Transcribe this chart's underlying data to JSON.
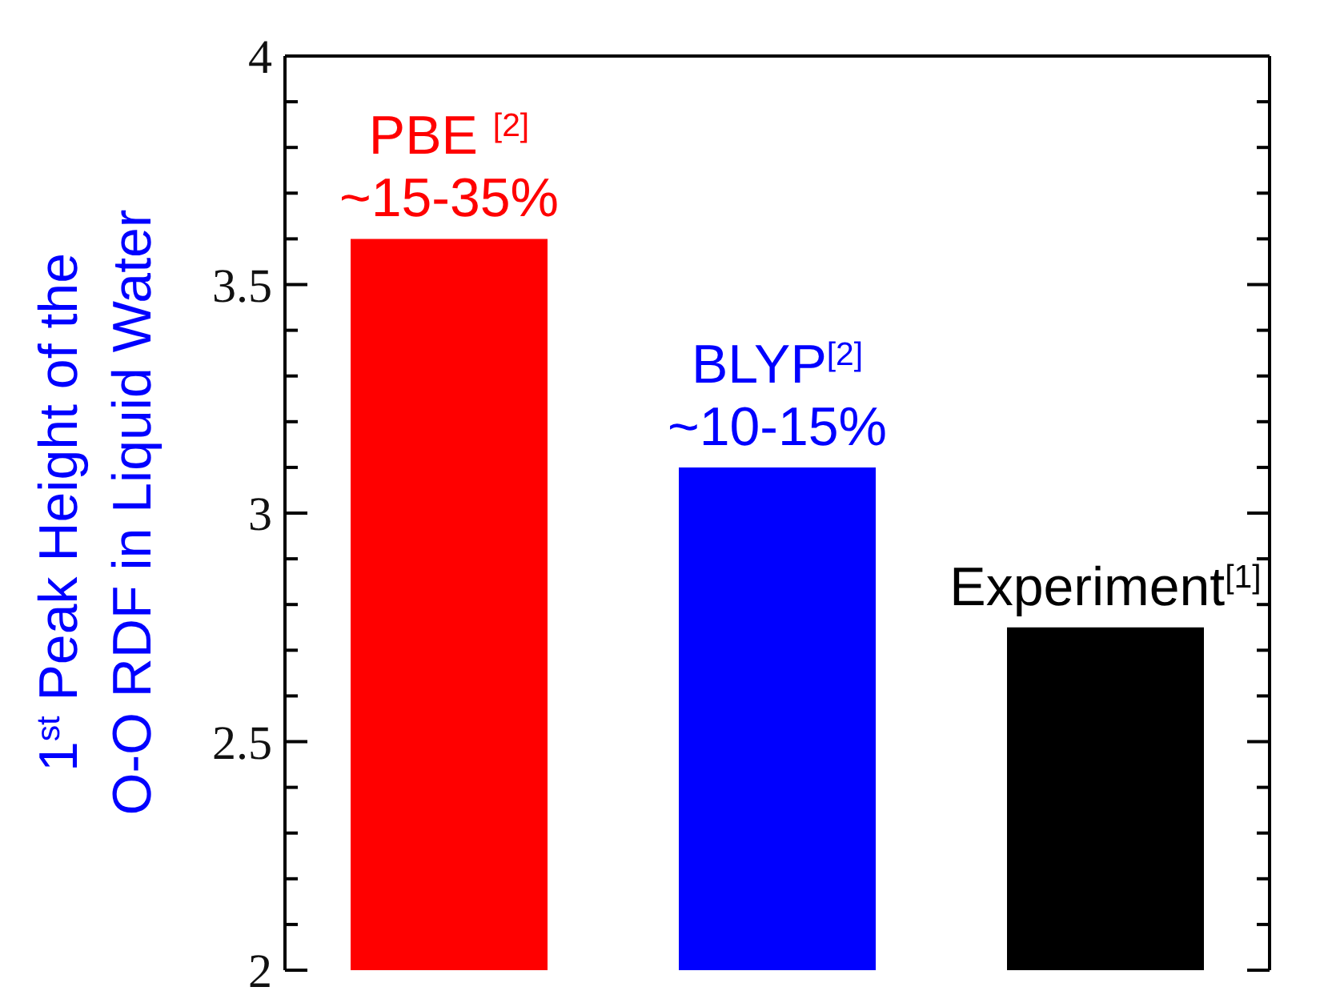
{
  "chart_data": {
    "type": "bar",
    "ylabel": "1$^{st}$ Peak Height of the\nO-O RDF in Liquid Water",
    "categories": [
      null,
      null,
      null
    ],
    "values": [
      3.6,
      3.1,
      2.75
    ],
    "colors": [
      "#ff0000",
      "#0000ff",
      "#000000"
    ],
    "annotations": [
      "PBE $^{[2]}$\n~15-35%",
      "BLYP$^{[2]}$\n~10-15%",
      "Experiment$^{[1]}$"
    ],
    "ylim": [
      2,
      4
    ],
    "yticks": [
      2,
      {
        "value": 2.1,
        "label": null
      },
      {
        "value": 2.2,
        "label": null
      },
      {
        "value": 2.3,
        "label": null
      },
      {
        "value": 2.4,
        "label": null
      },
      2.5,
      {
        "value": 2.6,
        "label": null
      },
      {
        "value": 2.7,
        "label": null
      },
      {
        "value": 2.8,
        "label": null
      },
      {
        "value": 2.9,
        "label": null
      },
      3,
      {
        "value": 3.1,
        "label": null
      },
      {
        "value": 3.2,
        "label": null
      },
      {
        "value": 3.3,
        "label": null
      },
      {
        "value": 3.4,
        "label": null
      },
      3.5,
      {
        "value": 3.6,
        "label": null
      },
      {
        "value": 3.7,
        "label": null
      },
      {
        "value": 3.8,
        "label": null
      },
      {
        "value": 3.9,
        "label": null
      },
      4
    ],
    "grid": false,
    "legend": false
  }
}
